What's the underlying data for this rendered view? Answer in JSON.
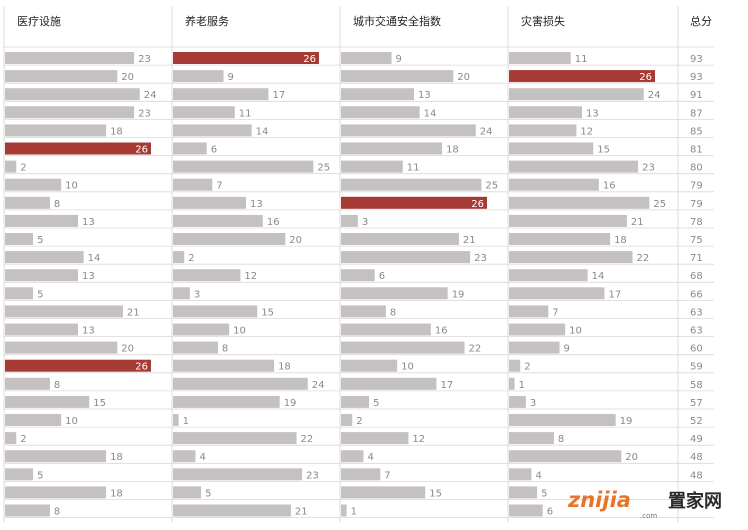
{
  "colors": {
    "bar": "#c4c1c0",
    "highlight": "#a63a34",
    "rule": "#d9d9d9",
    "divider": "#dcdcdc",
    "watermark_orange": "#e8742a"
  },
  "chart_data": {
    "type": "bar",
    "orientation": "horizontal",
    "layout": "small-multiples-table",
    "max_value": 26,
    "columns": [
      {
        "header": "医疗设施",
        "values": [
          23,
          20,
          24,
          23,
          18,
          26,
          2,
          10,
          8,
          13,
          5,
          14,
          13,
          5,
          21,
          13,
          20,
          26,
          8,
          15,
          10,
          2,
          18,
          5,
          18,
          8
        ],
        "highlight": [
          5,
          17
        ]
      },
      {
        "header": "养老服务",
        "values": [
          26,
          9,
          17,
          11,
          14,
          6,
          25,
          7,
          13,
          16,
          20,
          2,
          12,
          3,
          15,
          10,
          8,
          18,
          24,
          19,
          1,
          22,
          4,
          23,
          5,
          21
        ],
        "highlight": [
          0
        ]
      },
      {
        "header": "城市交通安全指数",
        "values": [
          9,
          20,
          13,
          14,
          24,
          18,
          11,
          25,
          26,
          3,
          21,
          23,
          6,
          19,
          8,
          16,
          22,
          10,
          17,
          5,
          2,
          12,
          4,
          7,
          15,
          1
        ],
        "highlight": [
          8
        ]
      },
      {
        "header": "灾害损失",
        "values": [
          11,
          26,
          24,
          13,
          12,
          15,
          23,
          16,
          25,
          21,
          18,
          22,
          14,
          17,
          7,
          10,
          9,
          2,
          1,
          3,
          19,
          8,
          20,
          4,
          5,
          6
        ],
        "highlight": [
          1
        ]
      }
    ],
    "total_header": "总分",
    "totals": [
      93,
      93,
      91,
      87,
      85,
      81,
      80,
      79,
      79,
      78,
      75,
      71,
      68,
      66,
      63,
      63,
      60,
      59,
      58,
      57,
      52,
      49,
      48,
      48,
      "",
      ""
    ]
  },
  "watermark": {
    "brand": "znijia",
    "cn": "置家网",
    "domain": ".com"
  }
}
